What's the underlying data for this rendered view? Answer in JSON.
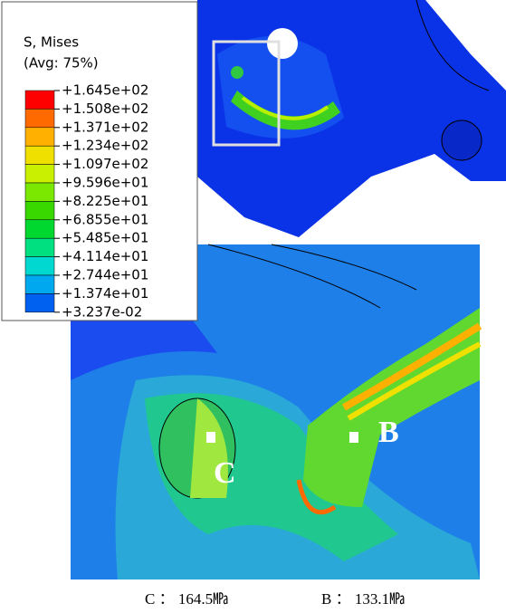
{
  "legend": {
    "title": "S, Mises",
    "subtitle": "(Avg: 75%)",
    "labels": [
      "+1.645e+02",
      "+1.508e+02",
      "+1.371e+02",
      "+1.234e+02",
      "+1.097e+02",
      "+9.596e+01",
      "+8.225e+01",
      "+6.855e+01",
      "+5.485e+01",
      "+4.114e+01",
      "+2.744e+01",
      "+1.374e+01",
      "+3.237e-02"
    ],
    "band_colors": [
      "#ff0000",
      "#ff6a00",
      "#ffb000",
      "#f0e000",
      "#c8f000",
      "#7ae800",
      "#38d800",
      "#00d830",
      "#00e080",
      "#00d8d0",
      "#00a8f0",
      "#0060f0",
      "#0020e0"
    ]
  },
  "figure": {
    "point_labels": [
      "C",
      "B"
    ],
    "captions": [
      "C ： 164.5㎫",
      "B ： 133.1㎫"
    ]
  }
}
